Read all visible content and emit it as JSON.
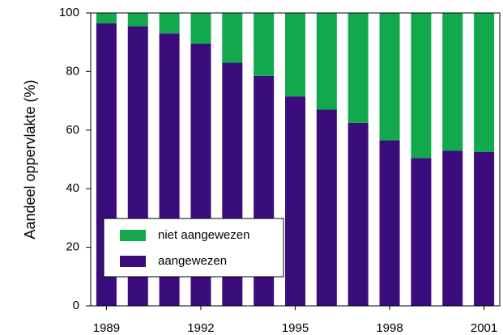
{
  "chart_data": {
    "type": "stacked_bar",
    "y_label": "Aandeel oppervlakte (%)",
    "categories": [
      "1989",
      null,
      null,
      "1992",
      null,
      null,
      "1995",
      null,
      null,
      "1998",
      null,
      null,
      "2001"
    ],
    "series": [
      {
        "name": "aangewezen",
        "color": "#3b0c7c",
        "values": [
          96.5,
          95.5,
          93,
          89.5,
          83,
          78.5,
          71.5,
          67,
          62.5,
          56.5,
          50.5,
          53,
          52.5
        ]
      },
      {
        "name": "niet aangewezen",
        "color": "#12a84c",
        "values": [
          3.5,
          4.5,
          7,
          10.5,
          17,
          21.5,
          28.5,
          33,
          37.5,
          43.5,
          49.5,
          47,
          47.5
        ]
      }
    ],
    "ylim": [
      0,
      100
    ],
    "yticks": [
      0,
      20,
      40,
      60,
      80,
      100
    ]
  }
}
